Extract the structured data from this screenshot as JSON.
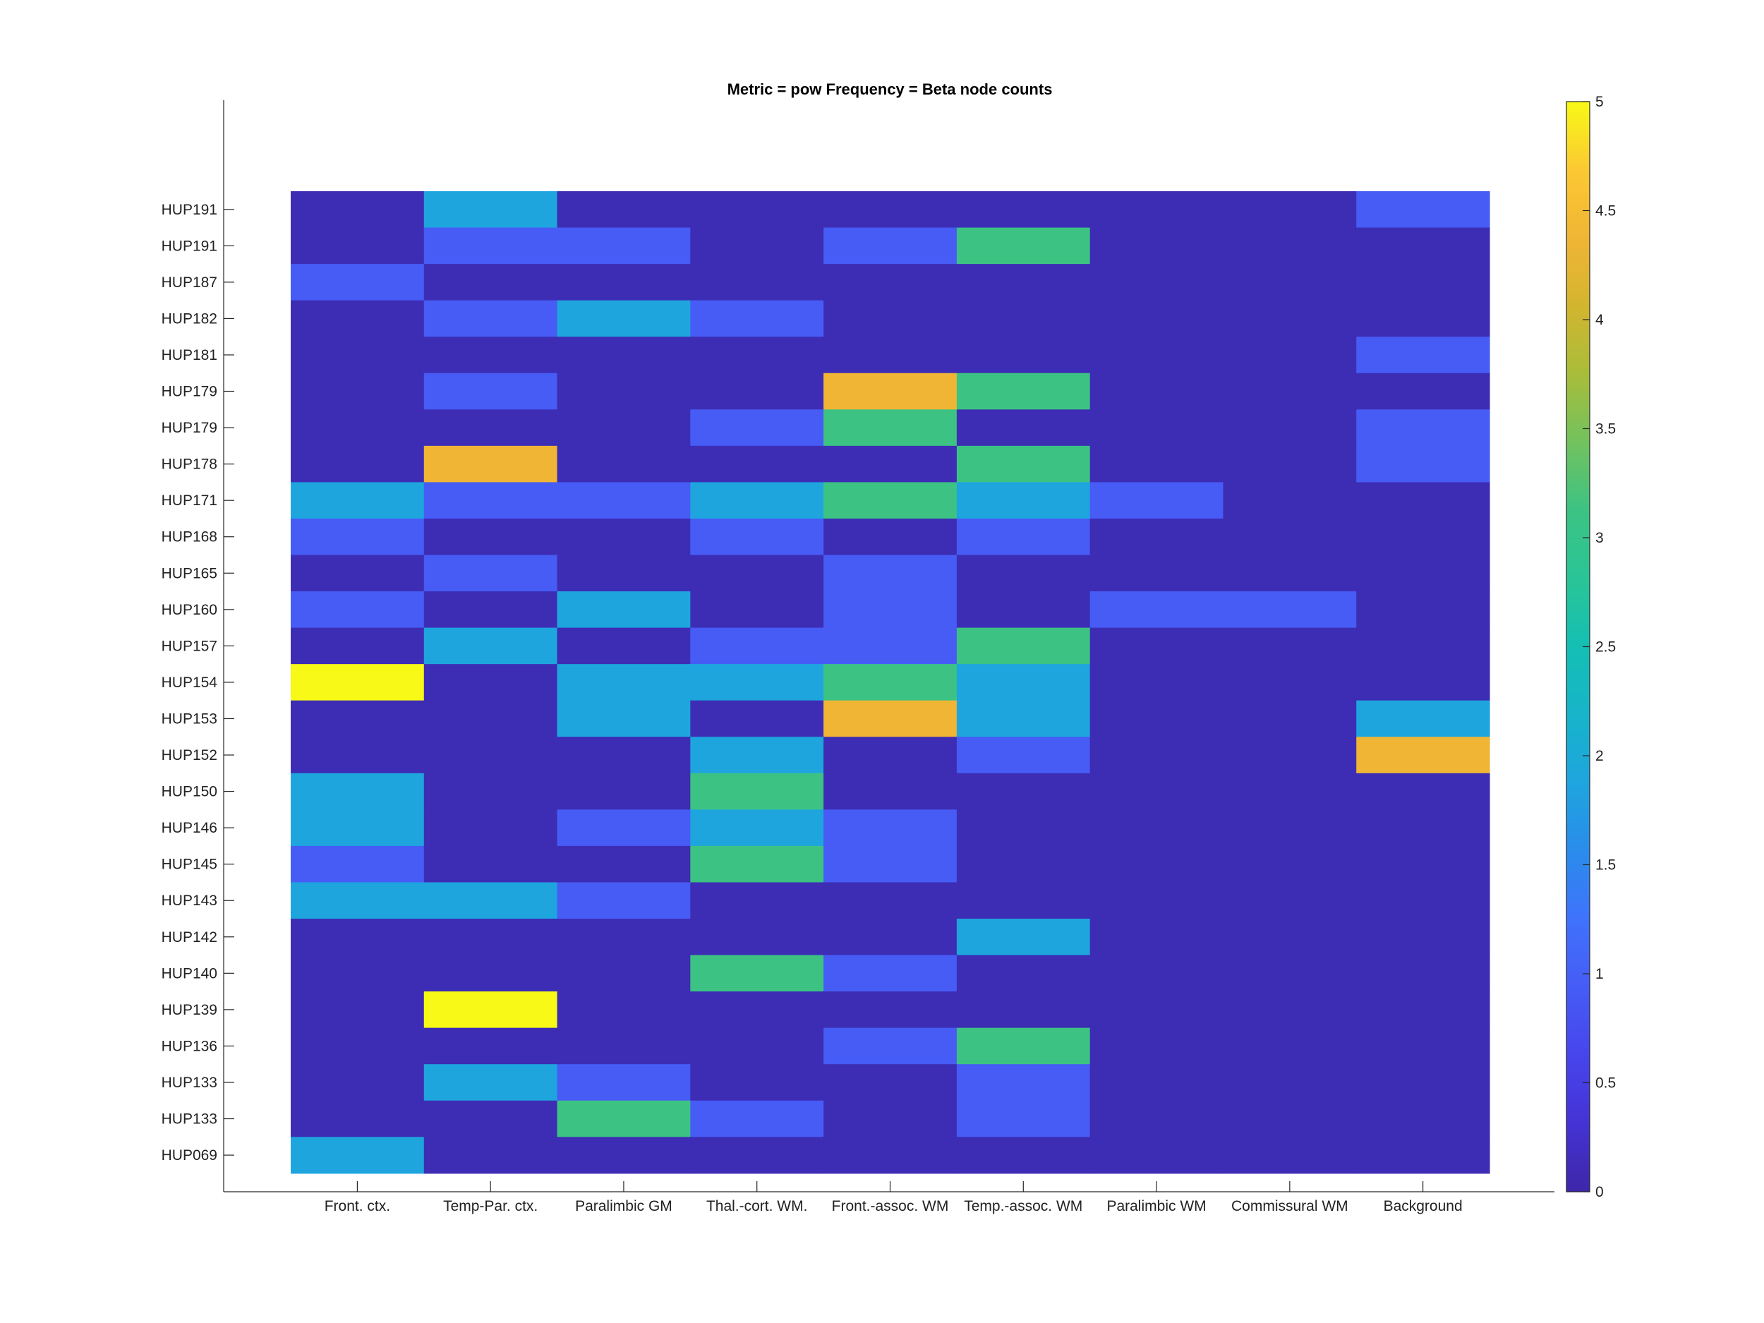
{
  "chart_data": {
    "type": "heatmap",
    "title": "Metric = pow Frequency = Beta node counts",
    "xlabel": "",
    "ylabel": "",
    "columns": [
      "Front. ctx.",
      "Temp-Par. ctx.",
      "Paralimbic GM",
      "Thal.-cort. WM.",
      "Front.-assoc. WM",
      "Temp.-assoc. WM",
      "Paralimbic WM",
      "Commissural WM",
      "Background"
    ],
    "rows": [
      "HUP191",
      "HUP191",
      "HUP187",
      "HUP182",
      "HUP181",
      "HUP179",
      "HUP179",
      "HUP178",
      "HUP171",
      "HUP168",
      "HUP165",
      "HUP160",
      "HUP157",
      "HUP154",
      "HUP153",
      "HUP152",
      "HUP150",
      "HUP146",
      "HUP145",
      "HUP143",
      "HUP142",
      "HUP140",
      "HUP139",
      "HUP136",
      "HUP133",
      "HUP133",
      "HUP069"
    ],
    "values": [
      [
        0,
        2,
        0,
        0,
        0,
        0,
        0,
        0,
        1
      ],
      [
        0,
        1,
        1,
        0,
        1,
        3,
        0,
        0,
        0
      ],
      [
        1,
        0,
        0,
        0,
        0,
        0,
        0,
        0,
        0
      ],
      [
        0,
        1,
        2,
        1,
        0,
        0,
        0,
        0,
        0
      ],
      [
        0,
        0,
        0,
        0,
        0,
        0,
        0,
        0,
        1
      ],
      [
        0,
        1,
        0,
        0,
        4,
        3,
        0,
        0,
        0
      ],
      [
        0,
        0,
        0,
        1,
        3,
        0,
        0,
        0,
        1
      ],
      [
        0,
        4,
        0,
        0,
        0,
        3,
        0,
        0,
        1
      ],
      [
        2,
        1,
        1,
        2,
        3,
        2,
        1,
        0,
        0
      ],
      [
        1,
        0,
        0,
        1,
        0,
        1,
        0,
        0,
        0
      ],
      [
        0,
        1,
        0,
        0,
        1,
        0,
        0,
        0,
        0
      ],
      [
        1,
        0,
        2,
        0,
        1,
        0,
        1,
        1,
        0
      ],
      [
        0,
        2,
        0,
        1,
        1,
        3,
        0,
        0,
        0
      ],
      [
        5,
        0,
        2,
        2,
        3,
        2,
        0,
        0,
        0
      ],
      [
        0,
        0,
        2,
        0,
        4,
        2,
        0,
        0,
        2
      ],
      [
        0,
        0,
        0,
        2,
        0,
        1,
        0,
        0,
        4
      ],
      [
        2,
        0,
        0,
        3,
        0,
        0,
        0,
        0,
        0
      ],
      [
        2,
        0,
        1,
        2,
        1,
        0,
        0,
        0,
        0
      ],
      [
        1,
        0,
        0,
        3,
        1,
        0,
        0,
        0,
        0
      ],
      [
        2,
        2,
        1,
        0,
        0,
        0,
        0,
        0,
        0
      ],
      [
        0,
        0,
        0,
        0,
        0,
        2,
        0,
        0,
        0
      ],
      [
        0,
        0,
        0,
        3,
        1,
        0,
        0,
        0,
        0
      ],
      [
        0,
        5,
        0,
        0,
        0,
        0,
        0,
        0,
        0
      ],
      [
        0,
        0,
        0,
        0,
        1,
        3,
        0,
        0,
        0
      ],
      [
        0,
        2,
        1,
        0,
        0,
        1,
        0,
        0,
        0
      ],
      [
        0,
        0,
        3,
        1,
        0,
        1,
        0,
        0,
        0
      ],
      [
        2,
        0,
        0,
        0,
        0,
        0,
        0,
        0,
        0
      ]
    ],
    "colorbar": {
      "min": 0,
      "max": 5,
      "ticks": [
        "0",
        "0.5",
        "1",
        "1.5",
        "2",
        "2.5",
        "3",
        "3.5",
        "4",
        "4.5",
        "5"
      ],
      "colormap": "parula"
    },
    "value_colors": {
      "0": "#3d2db4",
      "1": "#465cf5",
      "2": "#1ea5de",
      "3": "#3cc383",
      "4": "#f0b535",
      "5": "#f8f916"
    },
    "grid": false,
    "legend": "none"
  }
}
